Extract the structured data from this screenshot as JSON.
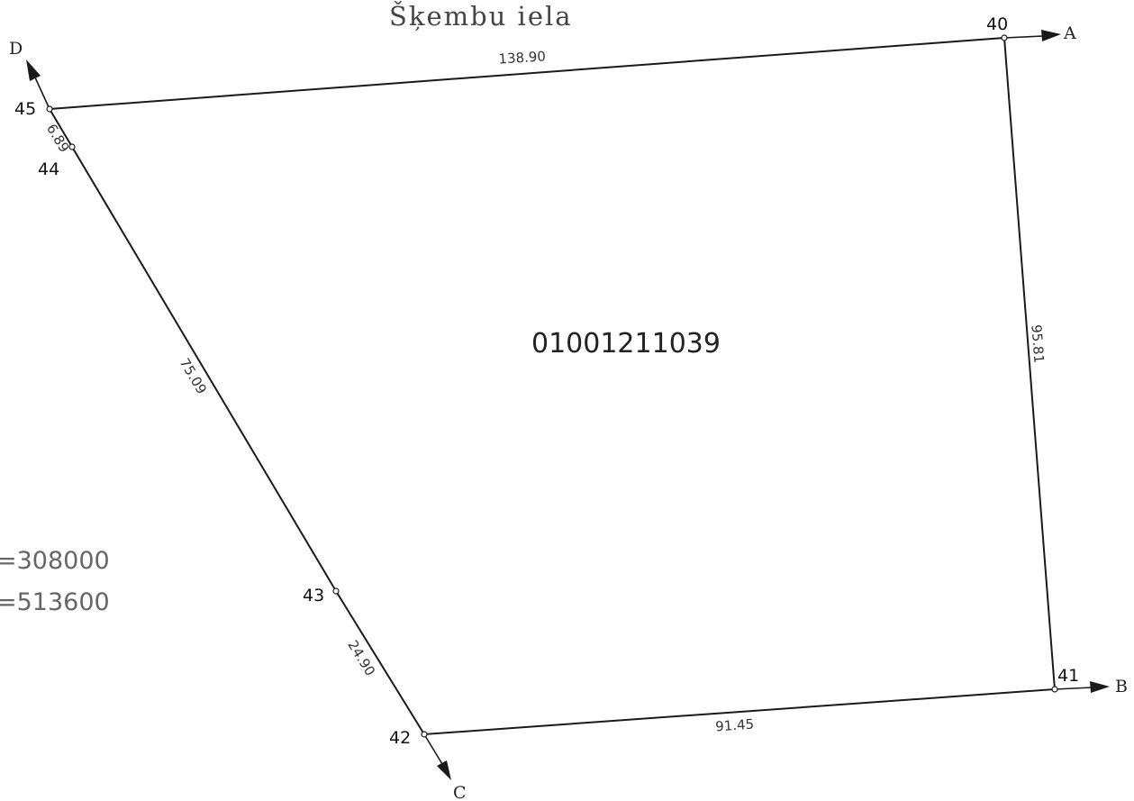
{
  "street_name": "Šķembu  iela",
  "parcel_id": "01001211039",
  "coordinates": {
    "line1": "=308000",
    "line2": "=513600"
  },
  "points": {
    "p40": "40",
    "p41": "41",
    "p42": "42",
    "p43": "43",
    "p44": "44",
    "p45": "45"
  },
  "directions": {
    "a": "A",
    "b": "B",
    "c": "C",
    "d": "D"
  },
  "dimensions": {
    "d40_45": "138.90",
    "d40_41": "95.81",
    "d41_42": "91.45",
    "d42_43": "24.90",
    "d43_44": "75.09",
    "d44_45": "6.89"
  }
}
